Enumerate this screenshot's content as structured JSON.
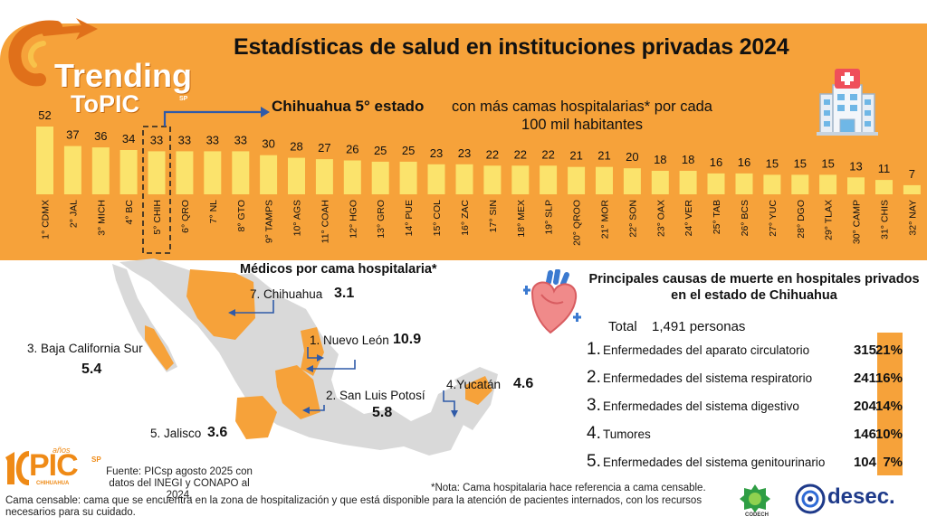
{
  "title": "Estadísticas de salud en instituciones privadas 2024",
  "brand": {
    "trending": "Trending",
    "topic": "ToPIC",
    "sp": "SP",
    "pic": "PIC",
    "pic_sp": "SP",
    "pic_sub": "CHIHUAHUA",
    "pic_years": "años",
    "codech": "CODECH",
    "desec": "desec."
  },
  "highlight": {
    "label": "Chihuahua 5° estado",
    "description": "con más camas hospitalarias* por cada 100 mil habitantes"
  },
  "colors": {
    "orange": "#f6a23a",
    "bar": "#fbe36c",
    "map_gray": "#d9d9d9",
    "map_highlight": "#f6a23a",
    "arrow": "#2f5aa8"
  },
  "chart_data": {
    "type": "bar",
    "title": "Camas hospitalarias por cada 100 mil habitantes",
    "categories": [
      "1° CDMX",
      "2° JAL",
      "3° MICH",
      "4° BC",
      "5° CHIH",
      "6° QRO",
      "7° NL",
      "8° GTO",
      "9° TAMPS",
      "10° AGS",
      "11° COAH",
      "12° HGO",
      "13° GRO",
      "14° PUE",
      "15° COL",
      "16° ZAC",
      "17° SIN",
      "18° MEX",
      "19° SLP",
      "20° QROO",
      "21° MOR",
      "22° SON",
      "23° OAX",
      "24° VER",
      "25° TAB",
      "26° BCS",
      "27° YUC",
      "28° DGO",
      "29° TLAX",
      "30° CAMP",
      "31° CHIS",
      "32° NAY"
    ],
    "values": [
      52,
      37,
      36,
      34,
      33,
      33,
      33,
      33,
      30,
      28,
      27,
      26,
      25,
      25,
      23,
      23,
      22,
      22,
      22,
      21,
      21,
      20,
      18,
      18,
      16,
      16,
      15,
      15,
      15,
      13,
      11,
      7
    ],
    "highlight_category": "5° CHIH",
    "ylim": [
      0,
      55
    ],
    "xlabel": "",
    "ylabel": ""
  },
  "doctors": {
    "title": "Médicos por cama hospitalaria*",
    "items": [
      {
        "label": "7. Chihuahua",
        "value": "3.1"
      },
      {
        "label": "1. Nuevo León",
        "value": "10.9"
      },
      {
        "label": "3. Baja California Sur",
        "value": "5.4"
      },
      {
        "label": "2. San Luis Potosí",
        "value": "5.8"
      },
      {
        "label": "4.Yucatán",
        "value": "4.6"
      },
      {
        "label": "5. Jalisco",
        "value": "3.6"
      }
    ]
  },
  "causes": {
    "title": "Principales causas de muerte en hospitales privados en el estado de Chihuahua",
    "total_label": "Total",
    "total_value": "1,491 personas",
    "items": [
      {
        "num": "1.",
        "label": "Enfermedades del aparato circulatorio",
        "count": "315",
        "pct": "21%"
      },
      {
        "num": "2.",
        "label": "Enfermedades del sistema respiratorio",
        "count": "241",
        "pct": "16%"
      },
      {
        "num": "3.",
        "label": "Enfermedades del sistema digestivo",
        "count": "204",
        "pct": "14%"
      },
      {
        "num": "4.",
        "label": "Tumores",
        "count": "146",
        "pct": "10%"
      },
      {
        "num": "5.",
        "label": "Enfermedades del sistema genitourinario",
        "count": "104",
        "pct": "7%"
      }
    ]
  },
  "footer": {
    "source": "Fuente: PICsp agosto 2025 con datos del INEGI y CONAPO al 2024.",
    "note": "*Nota: Cama hospitalaria hace referencia a cama censable.",
    "definition": "Cama censable: cama que se encuentra en la zona de hospitalización y que está disponible para la atención de pacientes internados, con los recursos necesarios para su cuidado."
  }
}
